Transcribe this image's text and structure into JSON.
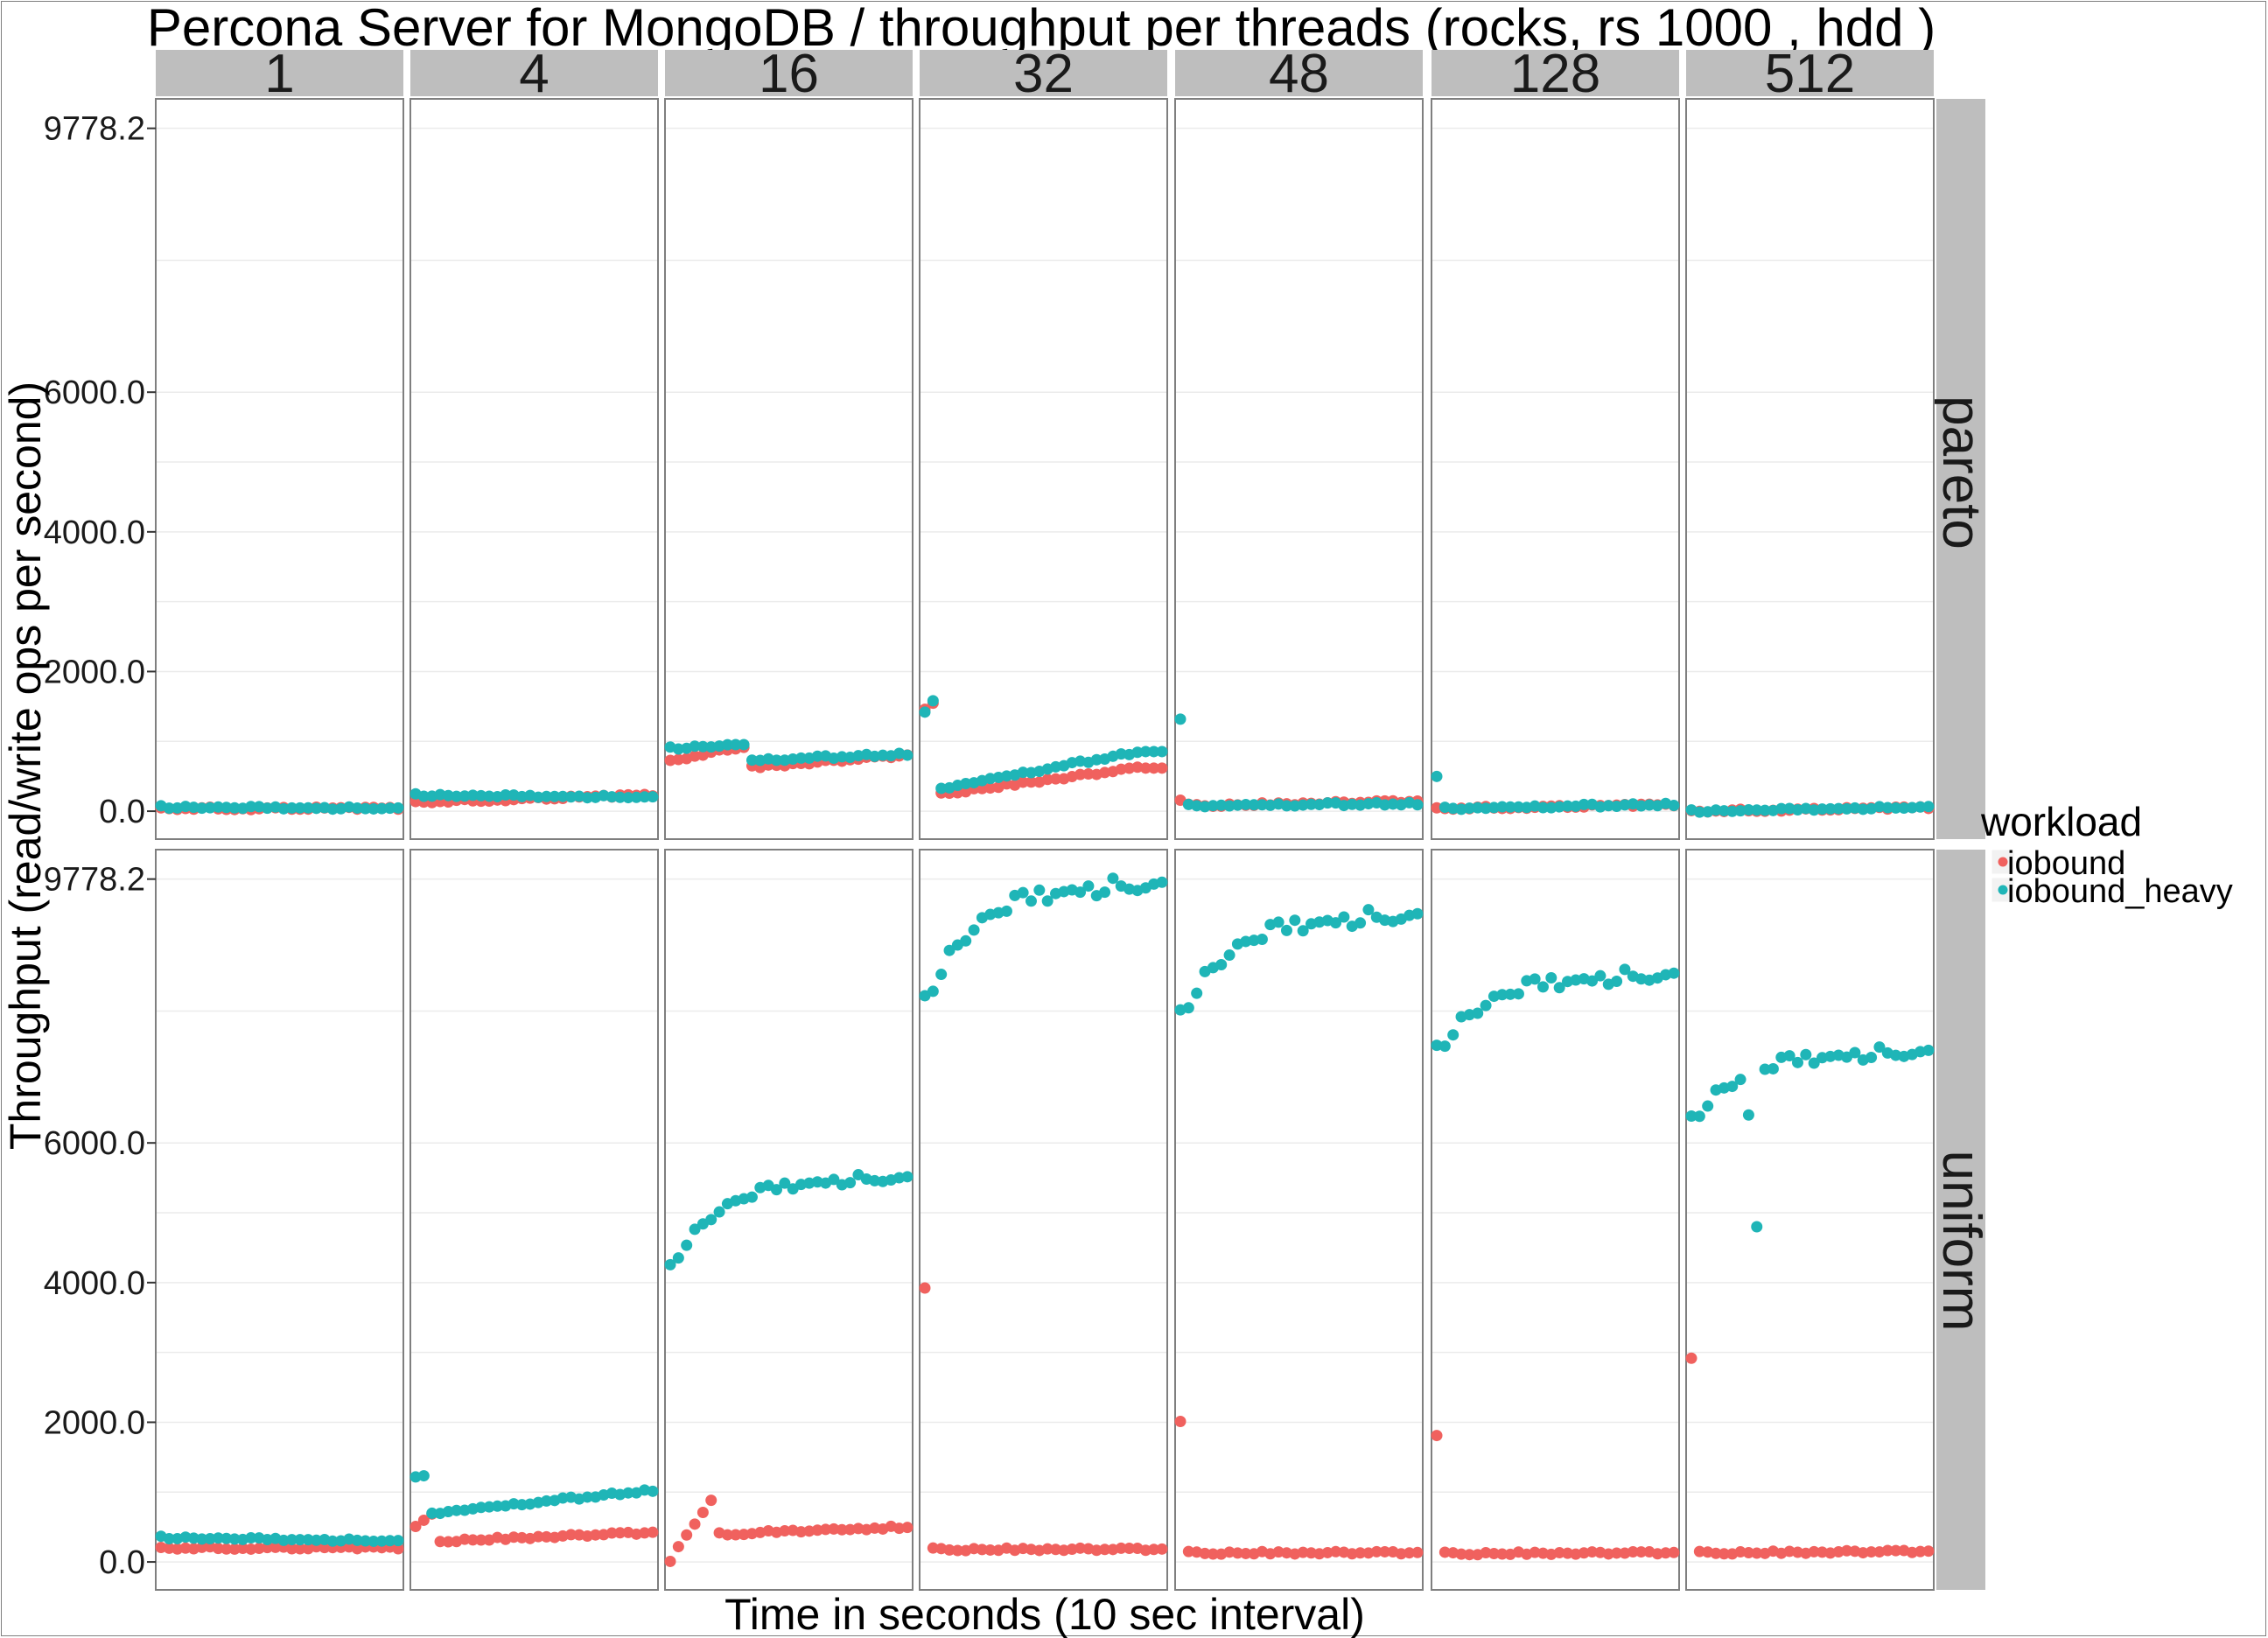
{
  "colors": {
    "iobound": "#F0615E",
    "iobound_heavy": "#1FB5B7",
    "strip": "#BEBEBE",
    "grid": "#EBEBEB",
    "panel_border": "#7F7F7F"
  },
  "chart_data": {
    "type": "scatter",
    "title": "Percona Server for MongoDB / throughput per threads (rocks, rs  1000 ,  hdd )",
    "xlabel": "Time in seconds (10 sec interval)",
    "ylabel": "Throughput (read/write ops per second)",
    "ylim": [
      -400,
      10200
    ],
    "yticks": [
      "0.0",
      "2000.0",
      "4000.0",
      "6000.0",
      "9778.2"
    ],
    "ytick_values": [
      0,
      2000,
      4000,
      6000,
      9778.2
    ],
    "grid": true,
    "columns": [
      "1",
      "4",
      "16",
      "32",
      "48",
      "128",
      "512"
    ],
    "rows": [
      "pareto",
      "uniform"
    ],
    "legend": {
      "title": "workload",
      "position": "right",
      "items": [
        "iobound",
        "iobound_heavy"
      ]
    },
    "panels": [
      {
        "row": "pareto",
        "col": "1",
        "iobound": [
          {
            "start": 40,
            "end": 40
          }
        ],
        "iobound_heavy": [
          {
            "start": 60,
            "end": 40
          }
        ]
      },
      {
        "row": "pareto",
        "col": "4",
        "iobound": [
          {
            "start": 130,
            "end": 230
          }
        ],
        "iobound_heavy": [
          {
            "start": 230,
            "end": 200
          }
        ]
      },
      {
        "row": "pareto",
        "col": "16",
        "iobound": [
          {
            "n": 10,
            "start": 720,
            "end": 930
          },
          {
            "n": 20,
            "start": 630,
            "end": 800
          }
        ],
        "iobound_heavy": [
          {
            "n": 10,
            "start": 900,
            "end": 960
          },
          {
            "n": 20,
            "start": 730,
            "end": 820
          }
        ]
      },
      {
        "row": "pareto",
        "col": "32",
        "iobound": [
          {
            "n": 2,
            "start": 1450,
            "end": 1550
          },
          {
            "n": 26,
            "start": 250,
            "end": 630
          }
        ],
        "iobound_heavy": [
          {
            "n": 2,
            "start": 1400,
            "end": 1600
          },
          {
            "n": 26,
            "start": 330,
            "end": 870
          }
        ]
      },
      {
        "row": "pareto",
        "col": "48",
        "iobound": [
          {
            "n": 1,
            "start": 150,
            "end": 150
          },
          {
            "n": 29,
            "start": 80,
            "end": 140
          }
        ],
        "iobound_heavy": [
          {
            "n": 1,
            "start": 1300,
            "end": 1300
          },
          {
            "n": 29,
            "start": 80,
            "end": 110
          }
        ]
      },
      {
        "row": "pareto",
        "col": "128",
        "iobound": [
          {
            "start": 40,
            "end": 90
          }
        ],
        "iobound_heavy": [
          {
            "n": 1,
            "start": 480,
            "end": 480
          },
          {
            "n": 29,
            "start": 40,
            "end": 100
          }
        ]
      },
      {
        "row": "pareto",
        "col": "512",
        "iobound": [
          {
            "start": 0,
            "end": 50
          }
        ],
        "iobound_heavy": [
          {
            "start": 0,
            "end": 60
          }
        ]
      },
      {
        "row": "uniform",
        "col": "1",
        "iobound": [
          {
            "start": 200,
            "end": 200
          }
        ],
        "iobound_heavy": [
          {
            "start": 350,
            "end": 300
          }
        ]
      },
      {
        "row": "uniform",
        "col": "4",
        "iobound": [
          {
            "n": 3,
            "start": 500,
            "end": 700
          },
          {
            "n": 27,
            "start": 300,
            "end": 420
          }
        ],
        "iobound_heavy": [
          {
            "n": 2,
            "start": 1200,
            "end": 1250
          },
          {
            "n": 28,
            "start": 700,
            "end": 1030
          }
        ]
      },
      {
        "row": "uniform",
        "col": "16",
        "iobound": [
          {
            "n": 1,
            "start": 0,
            "end": 0
          },
          {
            "n": 5,
            "start": 200,
            "end": 900
          },
          {
            "n": 24,
            "start": 400,
            "end": 500
          }
        ],
        "iobound_heavy": [
          {
            "n": 30,
            "start": 4200,
            "end": 5500,
            "curve": "exp"
          }
        ]
      },
      {
        "row": "uniform",
        "col": "32",
        "iobound": [
          {
            "n": 1,
            "start": 3900,
            "end": 3900
          },
          {
            "n": 29,
            "start": 180,
            "end": 180
          }
        ],
        "iobound_heavy": [
          {
            "n": 30,
            "start": 8000,
            "end": 9700,
            "curve": "exp"
          }
        ]
      },
      {
        "row": "uniform",
        "col": "48",
        "iobound": [
          {
            "n": 1,
            "start": 2000,
            "end": 2000
          },
          {
            "n": 29,
            "start": 130,
            "end": 130
          }
        ],
        "iobound_heavy": [
          {
            "n": 30,
            "start": 7800,
            "end": 9250,
            "curve": "exp"
          }
        ]
      },
      {
        "row": "uniform",
        "col": "128",
        "iobound": [
          {
            "n": 1,
            "start": 1800,
            "end": 1800
          },
          {
            "n": 29,
            "start": 120,
            "end": 130
          }
        ],
        "iobound_heavy": [
          {
            "n": 30,
            "start": 7300,
            "end": 8400,
            "curve": "exp"
          }
        ]
      },
      {
        "row": "uniform",
        "col": "512",
        "iobound": [
          {
            "n": 1,
            "start": 2900,
            "end": 2900
          },
          {
            "n": 29,
            "start": 130,
            "end": 150
          }
        ],
        "iobound_heavy": [
          {
            "n": 30,
            "start": 6300,
            "end": 7300,
            "curve": "exp",
            "outliers": [
              [
                7,
                6400
              ],
              [
                8,
                4800
              ]
            ]
          }
        ]
      }
    ]
  }
}
